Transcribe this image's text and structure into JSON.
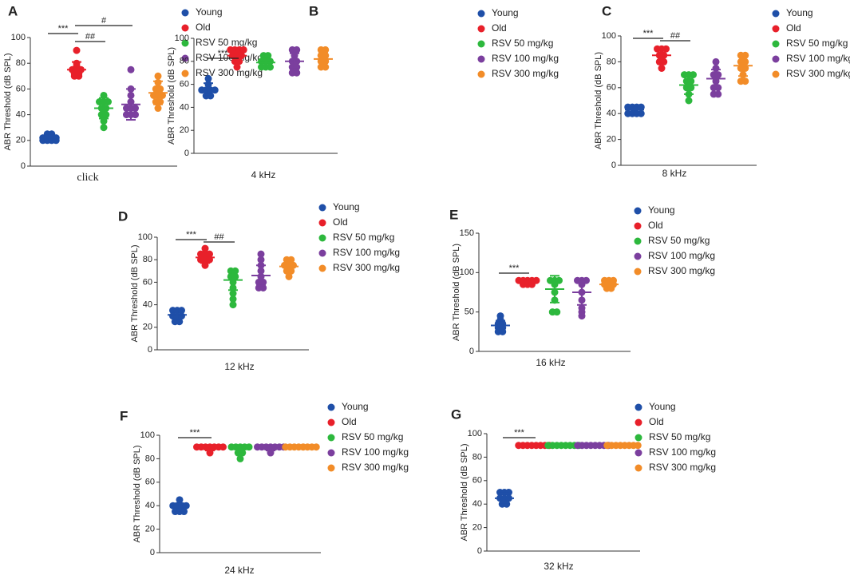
{
  "chart_data": [
    {
      "type": "dotplot",
      "label": "A",
      "xlabel": "click",
      "ylabel": "ABR Threshold (dB SPL)",
      "ylim": [
        0,
        100
      ],
      "yticks": [
        0,
        20,
        40,
        60,
        80,
        100
      ],
      "series": [
        {
          "name": "Young",
          "color": "#1f4fa8",
          "values": [
            20,
            20,
            22,
            22,
            22,
            25,
            25,
            20,
            22,
            20
          ],
          "mean": 22,
          "sd": 3
        },
        {
          "name": "Old",
          "color": "#e8202a",
          "values": [
            90,
            80,
            75,
            75,
            75,
            72,
            72,
            70,
            78,
            70
          ],
          "mean": 75,
          "sd": 6
        },
        {
          "name": "RSV 50 mg/kg",
          "color": "#2db83d",
          "values": [
            55,
            50,
            50,
            45,
            45,
            40,
            40,
            35,
            30,
            50
          ],
          "mean": 45,
          "sd": 8
        },
        {
          "name": "RSV 100 mg/kg",
          "color": "#7b3f9e",
          "values": [
            75,
            60,
            55,
            50,
            45,
            45,
            40,
            40,
            40,
            45
          ],
          "mean": 48,
          "sd": 12
        },
        {
          "name": "RSV 300 mg/kg",
          "color": "#f28c28",
          "values": [
            70,
            65,
            60,
            60,
            55,
            55,
            50,
            50,
            45,
            55
          ],
          "mean": 57,
          "sd": 9
        }
      ],
      "annotations": [
        {
          "text": "***",
          "from": "Young",
          "to": "Old"
        },
        {
          "text": "##",
          "from": "Old",
          "to": "RSV 50 mg/kg"
        },
        {
          "text": "#",
          "from": "Old",
          "to": "RSV 100 mg/kg"
        }
      ]
    },
    {
      "type": "dotplot",
      "label": "B",
      "xlabel": "4 kHz",
      "ylabel": "ABR Threshold (dB SPL)",
      "ylim": [
        0,
        100
      ],
      "yticks": [
        0,
        20,
        40,
        60,
        80,
        100
      ],
      "series": [
        {
          "name": "Young",
          "color": "#1f4fa8",
          "values": [
            65,
            60,
            55,
            55,
            55,
            50,
            50,
            55
          ],
          "mean": 56,
          "sd": 5
        },
        {
          "name": "Old",
          "color": "#e8202a",
          "values": [
            90,
            90,
            90,
            85,
            85,
            80,
            80,
            75,
            90,
            85
          ],
          "mean": 85,
          "sd": 5
        },
        {
          "name": "RSV 50 mg/kg",
          "color": "#2db83d",
          "values": [
            85,
            85,
            80,
            80,
            80,
            75,
            75,
            75
          ],
          "mean": 79,
          "sd": 4
        },
        {
          "name": "RSV 100 mg/kg",
          "color": "#7b3f9e",
          "values": [
            90,
            90,
            85,
            80,
            80,
            75,
            75,
            70,
            70
          ],
          "mean": 80,
          "sd": 7
        },
        {
          "name": "RSV 300 mg/kg",
          "color": "#f28c28",
          "values": [
            90,
            90,
            85,
            85,
            80,
            80,
            75,
            75
          ],
          "mean": 82,
          "sd": 6
        }
      ],
      "annotations": [
        {
          "text": "***",
          "from": "Young",
          "to": "Old"
        }
      ]
    },
    {
      "type": "dotplot",
      "label": "C",
      "xlabel": "8 kHz",
      "ylabel": "ABR Threshold (dB SPL)",
      "ylim": [
        0,
        100
      ],
      "yticks": [
        0,
        20,
        40,
        60,
        80,
        100
      ],
      "series": [
        {
          "name": "Young",
          "color": "#1f4fa8",
          "values": [
            45,
            45,
            45,
            40,
            40,
            40,
            45,
            40
          ],
          "mean": 43,
          "sd": 3
        },
        {
          "name": "Old",
          "color": "#e8202a",
          "values": [
            90,
            90,
            85,
            85,
            80,
            80,
            75,
            90
          ],
          "mean": 85,
          "sd": 5
        },
        {
          "name": "RSV 50 mg/kg",
          "color": "#2db83d",
          "values": [
            70,
            70,
            65,
            65,
            60,
            60,
            55,
            50,
            70
          ],
          "mean": 62,
          "sd": 7
        },
        {
          "name": "RSV 100 mg/kg",
          "color": "#7b3f9e",
          "values": [
            80,
            75,
            70,
            70,
            65,
            60,
            60,
            55,
            55
          ],
          "mean": 67,
          "sd": 7
        },
        {
          "name": "RSV 300 mg/kg",
          "color": "#f28c28",
          "values": [
            85,
            85,
            80,
            80,
            75,
            75,
            70,
            65,
            65
          ],
          "mean": 77,
          "sd": 8
        }
      ],
      "annotations": [
        {
          "text": "***",
          "from": "Young",
          "to": "Old"
        },
        {
          "text": "##",
          "from": "Old",
          "to": "RSV 50 mg/kg"
        }
      ]
    },
    {
      "type": "dotplot",
      "label": "D",
      "xlabel": "12 kHz",
      "ylabel": "ABR Threshold (dB SPL)",
      "ylim": [
        0,
        100
      ],
      "yticks": [
        0,
        20,
        40,
        60,
        80,
        100
      ],
      "series": [
        {
          "name": "Young",
          "color": "#1f4fa8",
          "values": [
            35,
            35,
            30,
            30,
            30,
            25,
            25,
            35
          ],
          "mean": 31,
          "sd": 4
        },
        {
          "name": "Old",
          "color": "#e8202a",
          "values": [
            90,
            85,
            85,
            80,
            80,
            75,
            85,
            80
          ],
          "mean": 82,
          "sd": 5
        },
        {
          "name": "RSV 50 mg/kg",
          "color": "#2db83d",
          "values": [
            70,
            70,
            65,
            65,
            60,
            55,
            50,
            45,
            40
          ],
          "mean": 62,
          "sd": 9
        },
        {
          "name": "RSV 100 mg/kg",
          "color": "#7b3f9e",
          "values": [
            85,
            80,
            75,
            70,
            65,
            60,
            60,
            55,
            55
          ],
          "mean": 66,
          "sd": 9
        },
        {
          "name": "RSV 300 mg/kg",
          "color": "#f28c28",
          "values": [
            80,
            80,
            75,
            75,
            70,
            70,
            65,
            75
          ],
          "mean": 74,
          "sd": 5
        }
      ],
      "annotations": [
        {
          "text": "***",
          "from": "Young",
          "to": "Old"
        },
        {
          "text": "##",
          "from": "Old",
          "to": "RSV 50 mg/kg"
        }
      ]
    },
    {
      "type": "dotplot",
      "label": "E",
      "xlabel": "16 kHz",
      "ylabel": "ABR Threshold (dB SPL)",
      "ylim": [
        0,
        150
      ],
      "yticks": [
        0,
        50,
        100,
        150
      ],
      "series": [
        {
          "name": "Young",
          "color": "#1f4fa8",
          "values": [
            45,
            40,
            35,
            35,
            30,
            30,
            25,
            25
          ],
          "mean": 33,
          "sd": 6
        },
        {
          "name": "Old",
          "color": "#e8202a",
          "values": [
            90,
            90,
            90,
            85,
            85,
            90,
            90,
            85
          ],
          "mean": 88,
          "sd": 3
        },
        {
          "name": "RSV 50 mg/kg",
          "color": "#2db83d",
          "values": [
            90,
            90,
            90,
            85,
            75,
            65,
            50,
            50
          ],
          "mean": 79,
          "sd": 17
        },
        {
          "name": "RSV 100 mg/kg",
          "color": "#7b3f9e",
          "values": [
            90,
            90,
            90,
            85,
            75,
            65,
            55,
            50,
            45
          ],
          "mean": 75,
          "sd": 16
        },
        {
          "name": "RSV 300 mg/kg",
          "color": "#f28c28",
          "values": [
            90,
            90,
            85,
            85,
            80,
            80,
            85,
            90
          ],
          "mean": 85,
          "sd": 4
        }
      ],
      "annotations": [
        {
          "text": "***",
          "from": "Young",
          "to": "Old"
        }
      ]
    },
    {
      "type": "dotplot",
      "label": "F",
      "xlabel": "24 kHz",
      "ylabel": "ABR Threshold (dB SPL)",
      "ylim": [
        0,
        100
      ],
      "yticks": [
        0,
        20,
        40,
        60,
        80,
        100
      ],
      "series": [
        {
          "name": "Young",
          "color": "#1f4fa8",
          "values": [
            45,
            40,
            40,
            40,
            35,
            35,
            35,
            40
          ],
          "mean": 39,
          "sd": 3
        },
        {
          "name": "Old",
          "color": "#e8202a",
          "values": [
            90,
            90,
            90,
            90,
            85,
            90,
            90,
            90
          ],
          "mean": 89,
          "sd": 2
        },
        {
          "name": "RSV 50 mg/kg",
          "color": "#2db83d",
          "values": [
            90,
            90,
            90,
            85,
            85,
            80,
            90,
            90
          ],
          "mean": 88,
          "sd": 3
        },
        {
          "name": "RSV 100 mg/kg",
          "color": "#7b3f9e",
          "values": [
            90,
            90,
            90,
            90,
            85,
            90,
            90,
            90
          ],
          "mean": 89,
          "sd": 2
        },
        {
          "name": "RSV 300 mg/kg",
          "color": "#f28c28",
          "values": [
            90,
            90,
            90,
            90,
            90,
            90,
            90,
            90
          ],
          "mean": 90,
          "sd": 0
        }
      ],
      "annotations": [
        {
          "text": "***",
          "from": "Young",
          "to": "Old"
        }
      ]
    },
    {
      "type": "dotplot",
      "label": "G",
      "xlabel": "32 kHz",
      "ylabel": "ABR Threshold (dB SPL)",
      "ylim": [
        0,
        100
      ],
      "yticks": [
        0,
        20,
        40,
        60,
        80,
        100
      ],
      "series": [
        {
          "name": "Young",
          "color": "#1f4fa8",
          "values": [
            50,
            50,
            50,
            45,
            45,
            45,
            40,
            40
          ],
          "mean": 45,
          "sd": 4
        },
        {
          "name": "Old",
          "color": "#e8202a",
          "values": [
            90,
            90,
            90,
            90,
            90,
            90,
            90,
            90
          ],
          "mean": 90,
          "sd": 0
        },
        {
          "name": "RSV 50 mg/kg",
          "color": "#2db83d",
          "values": [
            90,
            90,
            90,
            90,
            90,
            90,
            90,
            90
          ],
          "mean": 90,
          "sd": 0
        },
        {
          "name": "RSV 100 mg/kg",
          "color": "#7b3f9e",
          "values": [
            90,
            90,
            90,
            90,
            90,
            90,
            90,
            90
          ],
          "mean": 90,
          "sd": 0
        },
        {
          "name": "RSV 300 mg/kg",
          "color": "#f28c28",
          "values": [
            90,
            90,
            90,
            90,
            90,
            90,
            90,
            90
          ],
          "mean": 90,
          "sd": 0
        }
      ],
      "annotations": [
        {
          "text": "***",
          "from": "Young",
          "to": "Old"
        }
      ]
    }
  ]
}
